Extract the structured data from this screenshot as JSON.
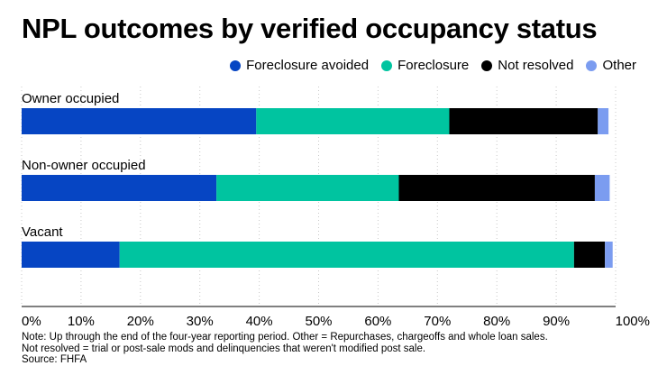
{
  "title": "NPL outcomes by verified occupancy status",
  "legend": [
    {
      "label": "Foreclosure avoided",
      "color": "#0645c3"
    },
    {
      "label": "Foreclosure",
      "color": "#00c4a0"
    },
    {
      "label": "Not resolved",
      "color": "#000000"
    },
    {
      "label": "Other",
      "color": "#7b9cf0"
    }
  ],
  "chart_data": {
    "type": "bar",
    "orientation": "horizontal",
    "stacked": true,
    "categories": [
      "Owner occupied",
      "Non-owner occupied",
      "Vacant"
    ],
    "series": [
      {
        "name": "Foreclosure avoided",
        "values": [
          39.5,
          32.8,
          16.5
        ]
      },
      {
        "name": "Foreclosure",
        "values": [
          32.5,
          30.7,
          76.5
        ]
      },
      {
        "name": "Not resolved",
        "values": [
          25.0,
          33.0,
          5.2
        ]
      },
      {
        "name": "Other",
        "values": [
          1.8,
          2.5,
          1.3
        ]
      }
    ],
    "xlim": [
      0,
      100
    ],
    "xticks": [
      "0%",
      "10%",
      "20%",
      "30%",
      "40%",
      "50%",
      "60%",
      "70%",
      "80%",
      "90%",
      "100%"
    ],
    "grid": "vertical dotted"
  },
  "notes": {
    "line1": "Note: Up through the end of the four-year reporting period. Other = Repurchases, chargeoffs and whole loan sales.",
    "line2": "Not resolved = trial or post-sale mods and delinquencies that weren't modified post sale.",
    "line3": "Source: FHFA"
  }
}
